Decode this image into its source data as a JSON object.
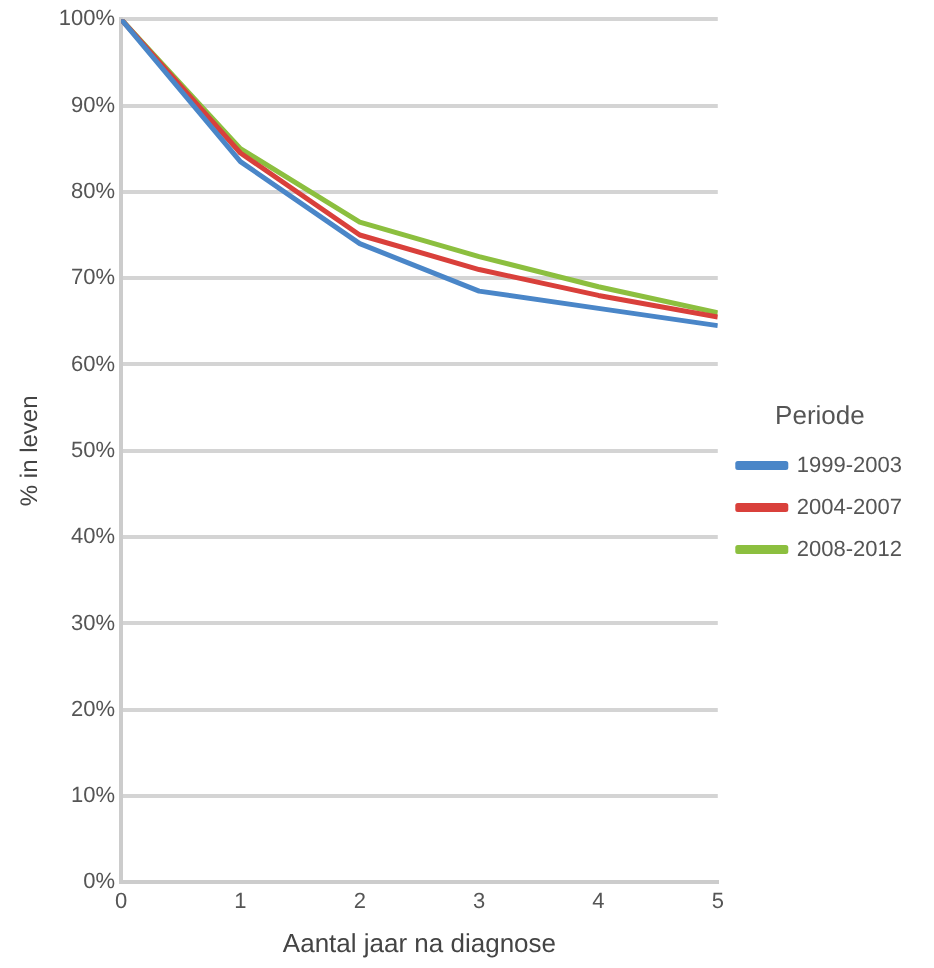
{
  "chart_data": {
    "type": "line",
    "xlabel": "Aantal jaar na diagnose",
    "ylabel": "% in leven",
    "legend_title": "Periode",
    "x": [
      0,
      1,
      2,
      3,
      4,
      5
    ],
    "series": [
      {
        "name": "1999-2003",
        "color": "#4a86c8",
        "values": [
          100,
          83.5,
          74,
          68.5,
          66.5,
          64.5
        ]
      },
      {
        "name": "2004-2007",
        "color": "#d9403b",
        "values": [
          100,
          84.5,
          75,
          71,
          68,
          65.5
        ]
      },
      {
        "name": "2008-2012",
        "color": "#8cbf3f",
        "values": [
          100,
          85,
          76.5,
          72.5,
          69,
          66
        ]
      }
    ],
    "xlim": [
      0,
      5
    ],
    "xticks": [
      0,
      1,
      2,
      3,
      4,
      5
    ],
    "ylim": [
      0,
      100
    ],
    "yticks": [
      {
        "value": 0,
        "label": "0%"
      },
      {
        "value": 10,
        "label": "10%"
      },
      {
        "value": 20,
        "label": "20%"
      },
      {
        "value": 30,
        "label": "30%"
      },
      {
        "value": 40,
        "label": "40%"
      },
      {
        "value": 50,
        "label": "50%"
      },
      {
        "value": 60,
        "label": "60%"
      },
      {
        "value": 70,
        "label": "70%"
      },
      {
        "value": 80,
        "label": "80%"
      },
      {
        "value": 90,
        "label": "90%"
      },
      {
        "value": 100,
        "label": "100%"
      }
    ],
    "grid": "y",
    "legend": "right",
    "marker": "none",
    "line_style": "solid"
  }
}
